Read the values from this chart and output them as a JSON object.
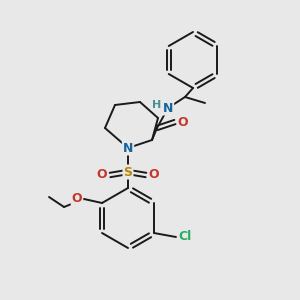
{
  "background_color": "#e8e8e8",
  "bond_color": "#1a1a1a",
  "atom_colors": {
    "N": "#1464a0",
    "O": "#c0392b",
    "S": "#b8860b",
    "Cl": "#27ae60",
    "H_teal": "#4a9090",
    "C": "#1a1a1a"
  },
  "figsize": [
    3.0,
    3.0
  ],
  "dpi": 100
}
